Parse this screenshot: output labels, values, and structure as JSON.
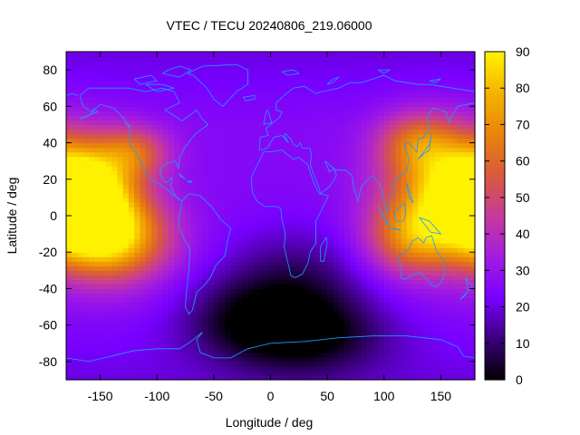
{
  "chart_data": {
    "type": "heatmap",
    "title": "VTEC / TECU 20240806_219.06000",
    "xlabel": "Longitude / deg",
    "ylabel": "Latitude / deg",
    "xlim": [
      -180,
      180
    ],
    "ylim": [
      -90,
      90
    ],
    "x_ticks": [
      -150,
      -100,
      -50,
      0,
      50,
      100,
      150
    ],
    "y_ticks": [
      -80,
      -60,
      -40,
      -20,
      0,
      20,
      40,
      60,
      80
    ],
    "colorbar": {
      "range": [
        0,
        90
      ],
      "ticks": [
        0,
        10,
        20,
        30,
        40,
        50,
        60,
        70,
        80,
        90
      ],
      "palette": [
        "#000000",
        "#3a007a",
        "#7800ff",
        "#a31ce0",
        "#c63a9c",
        "#d95a3c",
        "#e9840a",
        "#f5b300",
        "#fff200"
      ]
    },
    "grid": false,
    "legend": "colorbar-right",
    "features": [
      {
        "lon": -165,
        "lat": 12,
        "value": 88,
        "sx": 30,
        "sy": 18
      },
      {
        "lon": -140,
        "lat": -12,
        "value": 82,
        "sx": 35,
        "sy": 16
      },
      {
        "lon": 160,
        "lat": 12,
        "value": 78,
        "sx": 40,
        "sy": 22
      },
      {
        "lon": 125,
        "lat": -12,
        "value": 60,
        "sx": 28,
        "sy": 14
      },
      {
        "lon": -120,
        "lat": 35,
        "value": 55,
        "sx": 22,
        "sy": 10
      },
      {
        "lon": 130,
        "lat": 40,
        "value": 55,
        "sx": 25,
        "sy": 12
      }
    ],
    "background_value": 26,
    "lows": [
      {
        "lon": 20,
        "lat": -40,
        "value": 8,
        "sx": 45,
        "sy": 22
      },
      {
        "lon": 30,
        "lat": -65,
        "value": 5,
        "sx": 50,
        "sy": 15
      },
      {
        "lon": -30,
        "lat": -55,
        "value": 14,
        "sx": 40,
        "sy": 15
      }
    ],
    "coastline_color": "#1e9bff"
  }
}
